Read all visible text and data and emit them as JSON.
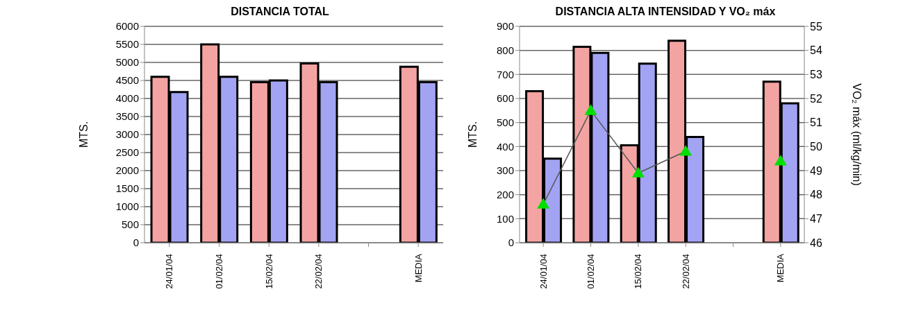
{
  "chart_data": [
    {
      "type": "bar",
      "title": "DISTANCIA TOTAL",
      "ylabel": "MTS.",
      "categories": [
        "24/01/04",
        "01/02/04",
        "15/02/04",
        "22/02/04",
        null,
        "MEDIA"
      ],
      "series": [
        {
          "color": "#f4a3a3",
          "values": [
            4600,
            5500,
            4450,
            4970,
            null,
            4880
          ]
        },
        {
          "color": "#a3a3f4",
          "values": [
            4180,
            4600,
            4500,
            4450,
            null,
            4450
          ]
        }
      ],
      "ylim": [
        0,
        6000
      ],
      "yticks": [
        0,
        500,
        1000,
        1500,
        2000,
        2500,
        3000,
        3500,
        4000,
        4500,
        5000,
        5500,
        6000
      ],
      "grid": "y",
      "legend": false
    },
    {
      "type": "bar",
      "title": "DISTANCIA ALTA INTENSIDAD Y VO₂ máx",
      "ylabel": "MTS.",
      "y2label": "VO₂ máx (ml/kg/min)",
      "categories": [
        "24/01/04",
        "01/02/04",
        "15/02/04",
        "22/02/04",
        null,
        "MEDIA"
      ],
      "series": [
        {
          "color": "#f4a3a3",
          "values": [
            630,
            815,
            405,
            840,
            null,
            670
          ]
        },
        {
          "color": "#a3a3f4",
          "values": [
            350,
            790,
            745,
            440,
            null,
            580
          ]
        },
        {
          "type": "line",
          "axis": "y2",
          "color": "#00e000",
          "marker": "triangle",
          "values": [
            47.6,
            51.5,
            48.9,
            49.8,
            null,
            49.4
          ]
        }
      ],
      "ylim": [
        0,
        900
      ],
      "yticks": [
        0,
        100,
        200,
        300,
        400,
        500,
        600,
        700,
        800,
        900
      ],
      "y2lim": [
        46,
        55
      ],
      "y2ticks": [
        46,
        47,
        48,
        49,
        50,
        51,
        52,
        53,
        54,
        55
      ],
      "grid": "y",
      "legend": false
    }
  ]
}
